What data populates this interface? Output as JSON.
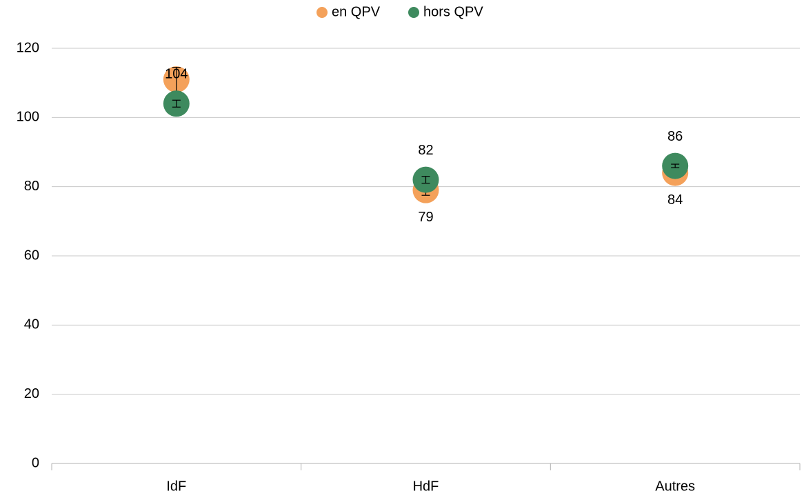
{
  "chart_data": {
    "type": "scatter",
    "categories": [
      "IdF",
      "HdF",
      "Autres"
    ],
    "series": [
      {
        "name": "en QPV",
        "color": "#f4a15a",
        "values": [
          111,
          79,
          84
        ],
        "errors": [
          3.5,
          1.5,
          0.5
        ]
      },
      {
        "name": "hors QPV",
        "color": "#3e8a5e",
        "values": [
          104,
          82,
          86
        ],
        "errors": [
          1,
          1,
          0.5
        ]
      }
    ],
    "ylim": [
      0,
      120
    ],
    "yticks": [
      0,
      20,
      40,
      60,
      80,
      100,
      120
    ],
    "grid": true,
    "legend": "top"
  }
}
